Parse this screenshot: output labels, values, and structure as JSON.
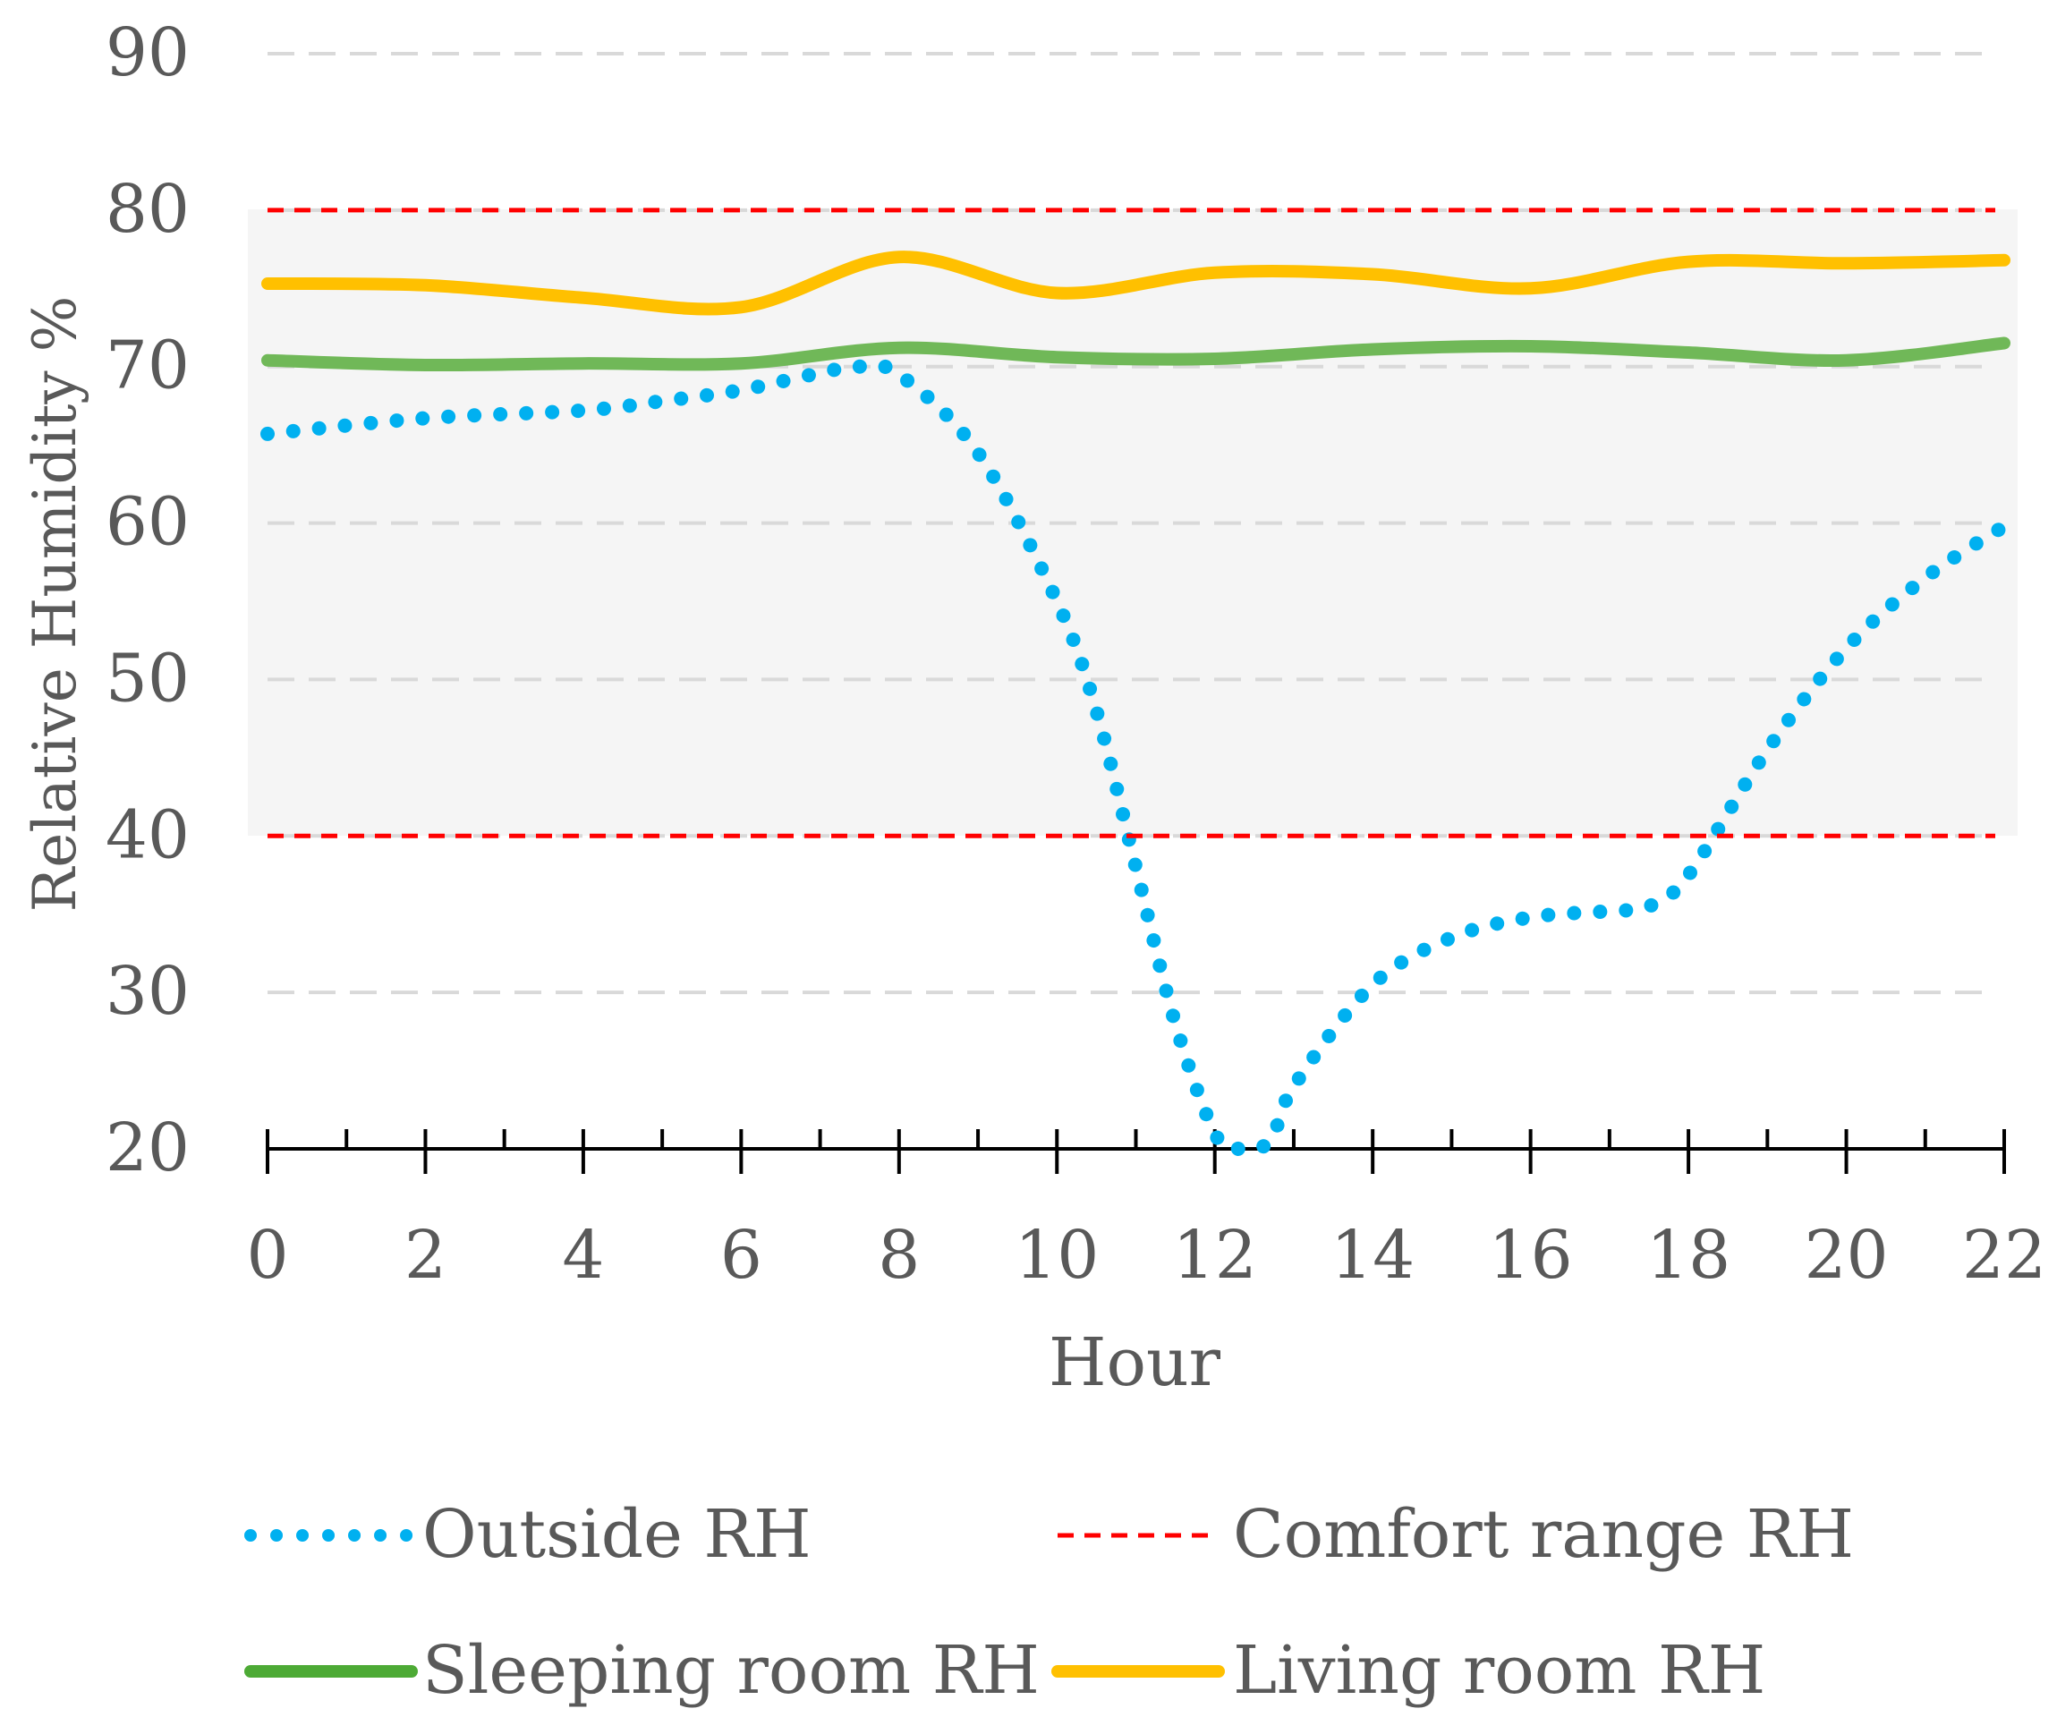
{
  "chart_data": {
    "type": "line",
    "xlabel": "Hour",
    "ylabel": "Relative Humidity %",
    "xlim": [
      0,
      22
    ],
    "ylim": [
      20,
      90
    ],
    "x_ticks": [
      0,
      2,
      4,
      6,
      8,
      10,
      12,
      14,
      16,
      18,
      20,
      22
    ],
    "y_ticks": [
      20,
      30,
      40,
      50,
      60,
      70,
      80,
      90
    ],
    "grid": true,
    "comfort_band": [
      40,
      80
    ],
    "legend_placement": "bottom",
    "series": [
      {
        "name": "Outside RH",
        "style": "dotted",
        "color": "#00b0f0",
        "x": [
          0,
          2,
          4,
          5,
          6,
          7,
          7.5,
          8,
          9,
          10,
          10.5,
          11,
          11.5,
          12,
          12.3,
          12.7,
          13,
          14,
          15,
          16,
          17,
          17.5,
          18,
          19,
          20,
          21,
          22
        ],
        "y": [
          65.7,
          66.7,
          67.2,
          67.8,
          68.5,
          69.6,
          70,
          69.5,
          64.5,
          55,
          48,
          38,
          28,
          21,
          20,
          20.5,
          24,
          30.5,
          33.5,
          34.8,
          35.2,
          35.5,
          37.5,
          45.5,
          52,
          56.5,
          59.8
        ]
      },
      {
        "name": "Comfort range RH",
        "style": "dashed",
        "color": "#ff0000",
        "upper": 80,
        "lower": 40
      },
      {
        "name": "Sleeping room RH",
        "style": "solid",
        "color": "#70b858",
        "x": [
          0,
          2,
          4,
          6,
          8,
          10,
          12,
          14,
          16,
          18,
          20,
          22
        ],
        "y": [
          70.4,
          70.1,
          70.2,
          70.2,
          71.2,
          70.6,
          70.5,
          71.1,
          71.3,
          70.9,
          70.4,
          71.5
        ]
      },
      {
        "name": "Living room RH",
        "style": "solid",
        "color": "#ffc000",
        "x": [
          0,
          2,
          4,
          6,
          8,
          10,
          12,
          14,
          16,
          18,
          20,
          22
        ],
        "y": [
          75.3,
          75.2,
          74.4,
          73.8,
          77,
          74.7,
          76,
          75.9,
          75,
          76.7,
          76.6,
          76.8
        ]
      }
    ]
  }
}
